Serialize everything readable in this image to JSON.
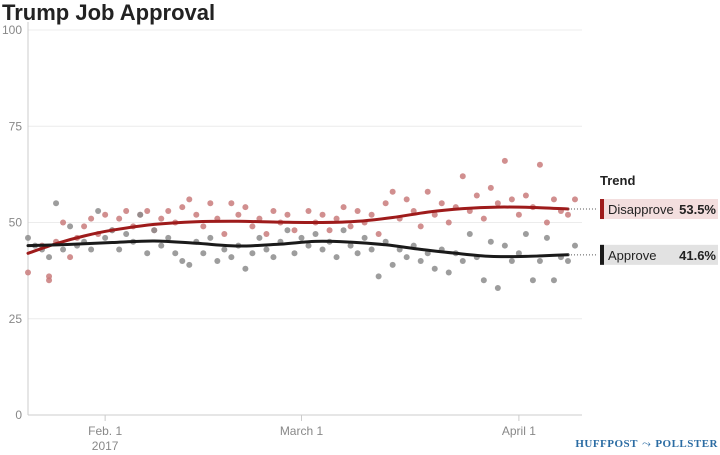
{
  "chart_data": {
    "type": "scatter",
    "title": "Trump Job Approval",
    "ylim": [
      0,
      100
    ],
    "yticks": [
      0,
      25,
      50,
      75,
      100
    ],
    "xlim": [
      "2017-01-21",
      "2017-04-10"
    ],
    "xticks": [
      {
        "date": "2017-02-01",
        "label": "Feb. 1",
        "sublabel": "2017"
      },
      {
        "date": "2017-03-01",
        "label": "March 1",
        "sublabel": ""
      },
      {
        "date": "2017-04-01",
        "label": "April 1",
        "sublabel": ""
      }
    ],
    "grid": "horizontal",
    "legend_title": "Trend",
    "legend_position": "right",
    "series": [
      {
        "name": "Disapprove",
        "color": "#9e1b1b",
        "point_color": "#c97b7b",
        "final_value": 53.5,
        "final_label": "53.5%",
        "trend": [
          {
            "x": "2017-01-21",
            "y": 42
          },
          {
            "x": "2017-01-25",
            "y": 44.5
          },
          {
            "x": "2017-01-29",
            "y": 46.5
          },
          {
            "x": "2017-02-02",
            "y": 48
          },
          {
            "x": "2017-02-08",
            "y": 49.5
          },
          {
            "x": "2017-02-14",
            "y": 50.2
          },
          {
            "x": "2017-02-20",
            "y": 50.3
          },
          {
            "x": "2017-02-26",
            "y": 50.1
          },
          {
            "x": "2017-03-04",
            "y": 50.0
          },
          {
            "x": "2017-03-09",
            "y": 50.3
          },
          {
            "x": "2017-03-14",
            "y": 51.3
          },
          {
            "x": "2017-03-19",
            "y": 52.7
          },
          {
            "x": "2017-03-24",
            "y": 53.6
          },
          {
            "x": "2017-03-29",
            "y": 54.0
          },
          {
            "x": "2017-04-03",
            "y": 53.9
          },
          {
            "x": "2017-04-08",
            "y": 53.5
          }
        ],
        "points": [
          {
            "x": "2017-01-21",
            "y": 37
          },
          {
            "x": "2017-01-23",
            "y": 44
          },
          {
            "x": "2017-01-24",
            "y": 35
          },
          {
            "x": "2017-01-24",
            "y": 36
          },
          {
            "x": "2017-01-25",
            "y": 45
          },
          {
            "x": "2017-01-26",
            "y": 50
          },
          {
            "x": "2017-01-27",
            "y": 41
          },
          {
            "x": "2017-01-28",
            "y": 46
          },
          {
            "x": "2017-01-29",
            "y": 49
          },
          {
            "x": "2017-01-30",
            "y": 51
          },
          {
            "x": "2017-01-31",
            "y": 47
          },
          {
            "x": "2017-02-01",
            "y": 52
          },
          {
            "x": "2017-02-02",
            "y": 48
          },
          {
            "x": "2017-02-03",
            "y": 51
          },
          {
            "x": "2017-02-04",
            "y": 53
          },
          {
            "x": "2017-02-05",
            "y": 49
          },
          {
            "x": "2017-02-06",
            "y": 52
          },
          {
            "x": "2017-02-07",
            "y": 53
          },
          {
            "x": "2017-02-08",
            "y": 48
          },
          {
            "x": "2017-02-09",
            "y": 51
          },
          {
            "x": "2017-02-10",
            "y": 53
          },
          {
            "x": "2017-02-11",
            "y": 50
          },
          {
            "x": "2017-02-12",
            "y": 54
          },
          {
            "x": "2017-02-13",
            "y": 56
          },
          {
            "x": "2017-02-14",
            "y": 52
          },
          {
            "x": "2017-02-15",
            "y": 49
          },
          {
            "x": "2017-02-16",
            "y": 55
          },
          {
            "x": "2017-02-17",
            "y": 51
          },
          {
            "x": "2017-02-18",
            "y": 47
          },
          {
            "x": "2017-02-19",
            "y": 55
          },
          {
            "x": "2017-02-20",
            "y": 52
          },
          {
            "x": "2017-02-21",
            "y": 54
          },
          {
            "x": "2017-02-22",
            "y": 49
          },
          {
            "x": "2017-02-23",
            "y": 51
          },
          {
            "x": "2017-02-24",
            "y": 47
          },
          {
            "x": "2017-02-25",
            "y": 53
          },
          {
            "x": "2017-02-26",
            "y": 50
          },
          {
            "x": "2017-02-27",
            "y": 52
          },
          {
            "x": "2017-02-28",
            "y": 48
          },
          {
            "x": "2017-03-02",
            "y": 53
          },
          {
            "x": "2017-03-03",
            "y": 50
          },
          {
            "x": "2017-03-04",
            "y": 52
          },
          {
            "x": "2017-03-05",
            "y": 48
          },
          {
            "x": "2017-03-06",
            "y": 51
          },
          {
            "x": "2017-03-07",
            "y": 54
          },
          {
            "x": "2017-03-08",
            "y": 49
          },
          {
            "x": "2017-03-09",
            "y": 53
          },
          {
            "x": "2017-03-10",
            "y": 50
          },
          {
            "x": "2017-03-11",
            "y": 52
          },
          {
            "x": "2017-03-12",
            "y": 47
          },
          {
            "x": "2017-03-13",
            "y": 55
          },
          {
            "x": "2017-03-14",
            "y": 58
          },
          {
            "x": "2017-03-15",
            "y": 51
          },
          {
            "x": "2017-03-16",
            "y": 56
          },
          {
            "x": "2017-03-17",
            "y": 53
          },
          {
            "x": "2017-03-18",
            "y": 49
          },
          {
            "x": "2017-03-19",
            "y": 58
          },
          {
            "x": "2017-03-20",
            "y": 52
          },
          {
            "x": "2017-03-21",
            "y": 55
          },
          {
            "x": "2017-03-22",
            "y": 50
          },
          {
            "x": "2017-03-23",
            "y": 54
          },
          {
            "x": "2017-03-24",
            "y": 62
          },
          {
            "x": "2017-03-25",
            "y": 53
          },
          {
            "x": "2017-03-26",
            "y": 57
          },
          {
            "x": "2017-03-27",
            "y": 51
          },
          {
            "x": "2017-03-28",
            "y": 59
          },
          {
            "x": "2017-03-29",
            "y": 55
          },
          {
            "x": "2017-03-30",
            "y": 66
          },
          {
            "x": "2017-03-31",
            "y": 56
          },
          {
            "x": "2017-04-01",
            "y": 52
          },
          {
            "x": "2017-04-02",
            "y": 57
          },
          {
            "x": "2017-04-03",
            "y": 54
          },
          {
            "x": "2017-04-04",
            "y": 65
          },
          {
            "x": "2017-04-05",
            "y": 50
          },
          {
            "x": "2017-04-06",
            "y": 56
          },
          {
            "x": "2017-04-07",
            "y": 53
          },
          {
            "x": "2017-04-08",
            "y": 52
          },
          {
            "x": "2017-04-09",
            "y": 56
          }
        ]
      },
      {
        "name": "Approve",
        "color": "#1a1a1a",
        "point_color": "#8c8c8c",
        "final_value": 41.6,
        "final_label": "41.6%",
        "trend": [
          {
            "x": "2017-01-21",
            "y": 44
          },
          {
            "x": "2017-01-27",
            "y": 44.3
          },
          {
            "x": "2017-02-02",
            "y": 44.8
          },
          {
            "x": "2017-02-08",
            "y": 45.2
          },
          {
            "x": "2017-02-14",
            "y": 44.6
          },
          {
            "x": "2017-02-20",
            "y": 43.9
          },
          {
            "x": "2017-02-26",
            "y": 44.4
          },
          {
            "x": "2017-03-03",
            "y": 45.1
          },
          {
            "x": "2017-03-08",
            "y": 44.9
          },
          {
            "x": "2017-03-13",
            "y": 44.2
          },
          {
            "x": "2017-03-18",
            "y": 43.0
          },
          {
            "x": "2017-03-23",
            "y": 42.0
          },
          {
            "x": "2017-03-28",
            "y": 41.2
          },
          {
            "x": "2017-04-02",
            "y": 41.2
          },
          {
            "x": "2017-04-08",
            "y": 41.6
          }
        ],
        "points": [
          {
            "x": "2017-01-21",
            "y": 46
          },
          {
            "x": "2017-01-22",
            "y": 44
          },
          {
            "x": "2017-01-23",
            "y": 43
          },
          {
            "x": "2017-01-24",
            "y": 41
          },
          {
            "x": "2017-01-25",
            "y": 55
          },
          {
            "x": "2017-01-26",
            "y": 43
          },
          {
            "x": "2017-01-27",
            "y": 49
          },
          {
            "x": "2017-01-28",
            "y": 44
          },
          {
            "x": "2017-01-29",
            "y": 45
          },
          {
            "x": "2017-01-30",
            "y": 43
          },
          {
            "x": "2017-01-31",
            "y": 53
          },
          {
            "x": "2017-02-01",
            "y": 46
          },
          {
            "x": "2017-02-02",
            "y": 48
          },
          {
            "x": "2017-02-03",
            "y": 43
          },
          {
            "x": "2017-02-04",
            "y": 47
          },
          {
            "x": "2017-02-05",
            "y": 45
          },
          {
            "x": "2017-02-06",
            "y": 52
          },
          {
            "x": "2017-02-07",
            "y": 42
          },
          {
            "x": "2017-02-08",
            "y": 48
          },
          {
            "x": "2017-02-09",
            "y": 44
          },
          {
            "x": "2017-02-10",
            "y": 46
          },
          {
            "x": "2017-02-11",
            "y": 42
          },
          {
            "x": "2017-02-12",
            "y": 40
          },
          {
            "x": "2017-02-13",
            "y": 39
          },
          {
            "x": "2017-02-14",
            "y": 45
          },
          {
            "x": "2017-02-15",
            "y": 42
          },
          {
            "x": "2017-02-16",
            "y": 46
          },
          {
            "x": "2017-02-17",
            "y": 40
          },
          {
            "x": "2017-02-18",
            "y": 43
          },
          {
            "x": "2017-02-19",
            "y": 41
          },
          {
            "x": "2017-02-20",
            "y": 44
          },
          {
            "x": "2017-02-21",
            "y": 38
          },
          {
            "x": "2017-02-22",
            "y": 42
          },
          {
            "x": "2017-02-23",
            "y": 46
          },
          {
            "x": "2017-02-24",
            "y": 43
          },
          {
            "x": "2017-02-25",
            "y": 41
          },
          {
            "x": "2017-02-26",
            "y": 45
          },
          {
            "x": "2017-02-27",
            "y": 48
          },
          {
            "x": "2017-02-28",
            "y": 42
          },
          {
            "x": "2017-03-01",
            "y": 46
          },
          {
            "x": "2017-03-02",
            "y": 44
          },
          {
            "x": "2017-03-03",
            "y": 47
          },
          {
            "x": "2017-03-04",
            "y": 43
          },
          {
            "x": "2017-03-05",
            "y": 45
          },
          {
            "x": "2017-03-06",
            "y": 41
          },
          {
            "x": "2017-03-07",
            "y": 48
          },
          {
            "x": "2017-03-08",
            "y": 44
          },
          {
            "x": "2017-03-09",
            "y": 42
          },
          {
            "x": "2017-03-10",
            "y": 46
          },
          {
            "x": "2017-03-11",
            "y": 43
          },
          {
            "x": "2017-03-12",
            "y": 36
          },
          {
            "x": "2017-03-13",
            "y": 45
          },
          {
            "x": "2017-03-14",
            "y": 39
          },
          {
            "x": "2017-03-15",
            "y": 43
          },
          {
            "x": "2017-03-16",
            "y": 41
          },
          {
            "x": "2017-03-17",
            "y": 44
          },
          {
            "x": "2017-03-18",
            "y": 40
          },
          {
            "x": "2017-03-19",
            "y": 42
          },
          {
            "x": "2017-03-20",
            "y": 38
          },
          {
            "x": "2017-03-21",
            "y": 43
          },
          {
            "x": "2017-03-22",
            "y": 37
          },
          {
            "x": "2017-03-23",
            "y": 42
          },
          {
            "x": "2017-03-24",
            "y": 40
          },
          {
            "x": "2017-03-25",
            "y": 47
          },
          {
            "x": "2017-03-26",
            "y": 41
          },
          {
            "x": "2017-03-27",
            "y": 35
          },
          {
            "x": "2017-03-28",
            "y": 45
          },
          {
            "x": "2017-03-29",
            "y": 33
          },
          {
            "x": "2017-03-30",
            "y": 44
          },
          {
            "x": "2017-03-31",
            "y": 40
          },
          {
            "x": "2017-04-01",
            "y": 42
          },
          {
            "x": "2017-04-02",
            "y": 47
          },
          {
            "x": "2017-04-03",
            "y": 35
          },
          {
            "x": "2017-04-04",
            "y": 40
          },
          {
            "x": "2017-04-05",
            "y": 46
          },
          {
            "x": "2017-04-06",
            "y": 35
          },
          {
            "x": "2017-04-07",
            "y": 41
          },
          {
            "x": "2017-04-08",
            "y": 40
          },
          {
            "x": "2017-04-09",
            "y": 44
          }
        ]
      }
    ]
  },
  "brand": {
    "part1": "HUFFPOST",
    "part2": "POLLSTER"
  }
}
